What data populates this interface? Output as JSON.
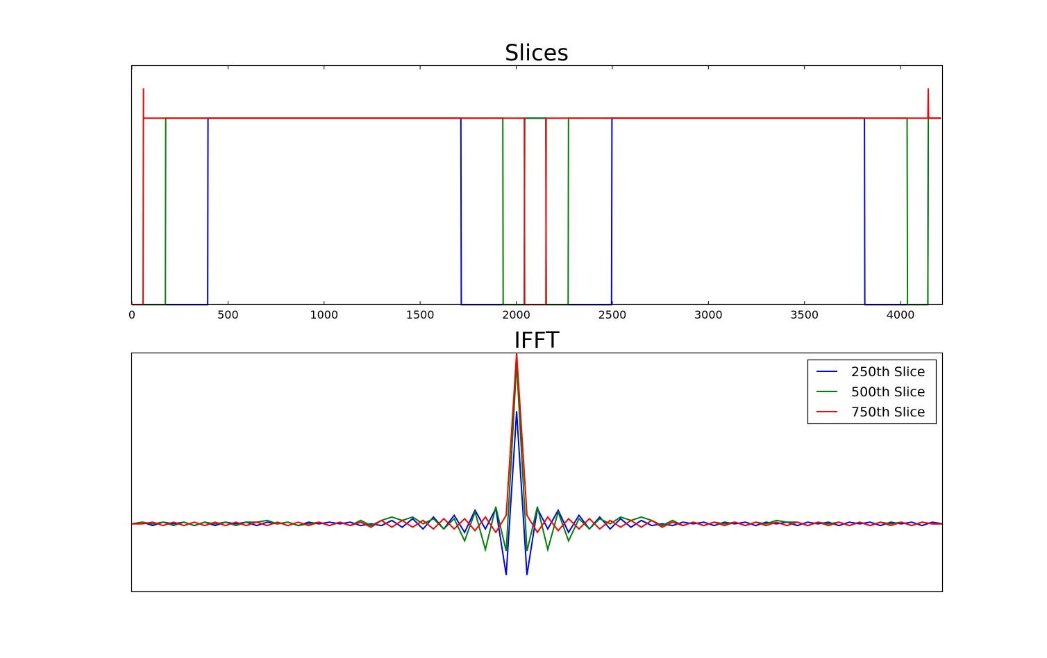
{
  "chart_data": [
    {
      "type": "line",
      "title": "Slices",
      "xlabel": "",
      "ylabel": "",
      "xlim": [
        0,
        4220
      ],
      "ylim": [
        0,
        1.28
      ],
      "xticks": [
        0,
        500,
        1000,
        1500,
        2000,
        2500,
        3000,
        3500,
        4000
      ],
      "xtick_labels": [
        "0",
        "500",
        "1000",
        "1500",
        "2000",
        "2500",
        "3000",
        "3500",
        "4000"
      ],
      "yticks_visible": false,
      "grid": false,
      "series": [
        {
          "color": "#0000ff",
          "x": [
            0,
            394,
            396,
            1712,
            1714,
            1940,
            2042,
            2044,
            2154,
            2156,
            2496,
            2498,
            3812,
            3814,
            4040,
            4142,
            4144,
            4210
          ],
          "y": [
            0,
            0,
            1.0,
            1.0,
            0,
            0,
            0,
            1.0,
            1.0,
            0,
            0,
            1.0,
            1.0,
            0,
            0,
            0,
            1.0,
            1.0
          ]
        },
        {
          "color": "#008000",
          "x": [
            0,
            174,
            176,
            1930,
            1932,
            2042,
            2044,
            2154,
            2156,
            2270,
            2272,
            4034,
            4036,
            4142,
            4144,
            4210
          ],
          "y": [
            0,
            0,
            1.0,
            1.0,
            0,
            0,
            1.0,
            1.0,
            0,
            0,
            1.0,
            1.0,
            0,
            0,
            1.0,
            1.0
          ]
        },
        {
          "color": "#ff0000",
          "x": [
            0,
            58,
            60,
            60,
            62,
            2042,
            2044,
            2154,
            2156,
            4142,
            4144,
            4146,
            4210
          ],
          "y": [
            0,
            0,
            1.16,
            1.0,
            1.0,
            1.0,
            0,
            0,
            1.0,
            1.0,
            1.16,
            1.0,
            1.0
          ]
        }
      ]
    },
    {
      "type": "line",
      "title": "IFFT",
      "xlabel": "",
      "ylabel": "",
      "xlim": [
        0,
        156
      ],
      "ylim": [
        -0.4,
        1.0
      ],
      "xticks_visible": false,
      "yticks_visible": false,
      "grid": false,
      "legend_position": "top-right",
      "series": [
        {
          "name": "250th Slice",
          "color": "#0000ff",
          "x": [
            0,
            2,
            4,
            6,
            8,
            10,
            12,
            14,
            16,
            18,
            20,
            22,
            24,
            26,
            28,
            30,
            32,
            34,
            36,
            38,
            40,
            42,
            44,
            46,
            48,
            50,
            52,
            54,
            56,
            58,
            60,
            62,
            64,
            66,
            68,
            70,
            72,
            74,
            76,
            78,
            80,
            82,
            84,
            86,
            88,
            90,
            92,
            94,
            96,
            98,
            100,
            102,
            104,
            106,
            108,
            110,
            112,
            114,
            116,
            118,
            120,
            122,
            124,
            126,
            128,
            130,
            132,
            134,
            136,
            138,
            140,
            142,
            144,
            146,
            148,
            150,
            152,
            154,
            156
          ],
          "y": [
            0,
            0.01,
            -0.01,
            0.01,
            0,
            0.01,
            -0.01,
            0.01,
            -0.01,
            0.01,
            0,
            0.01,
            -0.01,
            0.01,
            0,
            0.01,
            -0.01,
            0.01,
            0,
            0.01,
            0,
            0.01,
            -0.01,
            0,
            -0.01,
            0.02,
            -0.02,
            0.03,
            -0.03,
            0.04,
            -0.03,
            0.05,
            -0.05,
            0.08,
            -0.03,
            0.09,
            -0.3,
            0.66,
            -0.3,
            0.09,
            -0.03,
            0.08,
            -0.05,
            0.05,
            -0.03,
            0.04,
            -0.03,
            0.03,
            -0.02,
            0.02,
            -0.01,
            0,
            -0.01,
            0.01,
            0,
            0.01,
            -0.01,
            0.01,
            0,
            0.01,
            -0.01,
            0.01,
            0,
            0.01,
            -0.01,
            0.01,
            0,
            0.01,
            -0.01,
            0.01,
            0,
            0.01,
            -0.01,
            0.01,
            0,
            0.01,
            -0.01,
            0.01,
            0
          ]
        },
        {
          "name": "500th Slice",
          "color": "#008000",
          "x": [
            0,
            2,
            4,
            6,
            8,
            10,
            12,
            14,
            16,
            18,
            20,
            22,
            24,
            26,
            28,
            30,
            32,
            34,
            36,
            38,
            40,
            42,
            44,
            46,
            48,
            50,
            52,
            54,
            56,
            58,
            60,
            62,
            64,
            66,
            68,
            70,
            72,
            74,
            76,
            78,
            80,
            82,
            84,
            86,
            88,
            90,
            92,
            94,
            96,
            98,
            100,
            102,
            104,
            106,
            108,
            110,
            112,
            114,
            116,
            118,
            120,
            122,
            124,
            126,
            128,
            130,
            132,
            134,
            136,
            138,
            140,
            142,
            144,
            146,
            148,
            150,
            152,
            154,
            156
          ],
          "y": [
            0,
            0.01,
            0,
            0.01,
            -0.01,
            0.01,
            -0.01,
            0.01,
            0,
            0.01,
            -0.01,
            0.01,
            0.01,
            0.02,
            0,
            0.01,
            -0.01,
            0,
            0.01,
            -0.01,
            0.01,
            -0.01,
            0.02,
            -0.01,
            0.02,
            0.04,
            0.02,
            0.04,
            0,
            0.03,
            -0.03,
            0.03,
            -0.1,
            0.07,
            -0.15,
            0.1,
            -0.16,
            0.94,
            -0.16,
            0.1,
            -0.15,
            0.07,
            -0.1,
            0.03,
            -0.03,
            0.03,
            0,
            0.04,
            0.02,
            0.04,
            0.02,
            -0.01,
            0.02,
            -0.01,
            0.01,
            -0.01,
            0.01,
            0,
            0.01,
            -0.01,
            0.01,
            0,
            0.02,
            0.01,
            0.01,
            -0.01,
            0.01,
            0,
            0.01,
            -0.01,
            0.01,
            -0.01,
            0.01,
            0,
            0.01,
            -0.01,
            0.01,
            0,
            0
          ]
        },
        {
          "name": "750th Slice",
          "color": "#ff0000",
          "x": [
            0,
            2,
            4,
            6,
            8,
            10,
            12,
            14,
            16,
            18,
            20,
            22,
            24,
            26,
            28,
            30,
            32,
            34,
            36,
            38,
            40,
            42,
            44,
            46,
            48,
            50,
            52,
            54,
            56,
            58,
            60,
            62,
            64,
            66,
            68,
            70,
            72,
            74,
            76,
            78,
            80,
            82,
            84,
            86,
            88,
            90,
            92,
            94,
            96,
            98,
            100,
            102,
            104,
            106,
            108,
            110,
            112,
            114,
            116,
            118,
            120,
            122,
            124,
            126,
            128,
            130,
            132,
            134,
            136,
            138,
            140,
            142,
            144,
            146,
            148,
            150,
            152,
            154,
            156
          ],
          "y": [
            0,
            0,
            0.01,
            -0.01,
            0.01,
            -0.01,
            0.01,
            -0.01,
            0.01,
            -0.01,
            0.01,
            -0.01,
            0.01,
            -0.01,
            0.01,
            -0.01,
            0.01,
            -0.01,
            0.01,
            -0.01,
            0.01,
            -0.01,
            0.01,
            -0.02,
            0.02,
            -0.02,
            0.02,
            -0.02,
            0.02,
            -0.03,
            0.03,
            -0.03,
            0.03,
            -0.04,
            0.04,
            -0.05,
            0.05,
            1.0,
            0.05,
            -0.05,
            0.04,
            -0.04,
            0.03,
            -0.03,
            0.03,
            -0.03,
            0.02,
            -0.02,
            0.02,
            -0.02,
            0.02,
            -0.02,
            0.01,
            -0.01,
            0.01,
            -0.01,
            0.01,
            -0.01,
            0.01,
            -0.01,
            0.01,
            -0.01,
            0.01,
            -0.01,
            0.01,
            -0.01,
            0.01,
            -0.01,
            0.01,
            -0.01,
            0.01,
            -0.01,
            0.01,
            -0.01,
            0.01,
            -0.01,
            0.01,
            0,
            0
          ]
        }
      ]
    }
  ]
}
